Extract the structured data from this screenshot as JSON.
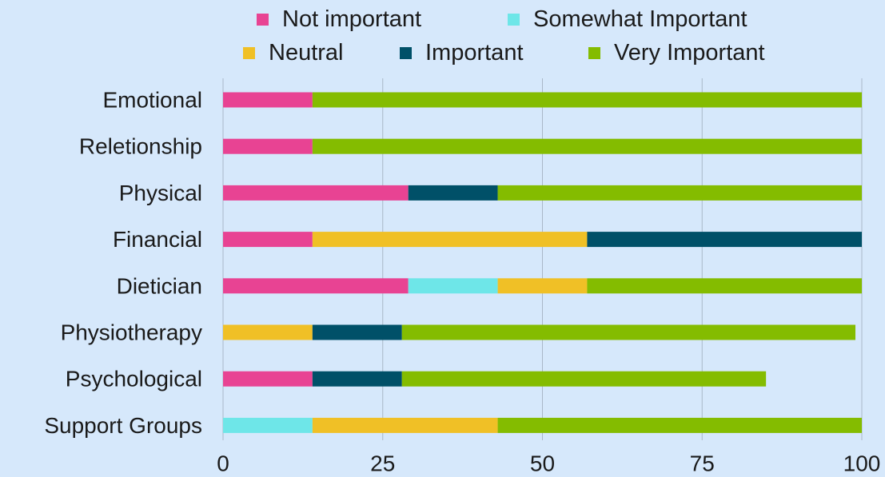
{
  "chart_data": {
    "type": "bar",
    "orientation": "horizontal",
    "stacked": true,
    "categories": [
      "Emotional",
      "Reletionship",
      "Physical",
      "Financial",
      "Dietician",
      "Physiotherapy",
      "Psychological",
      "Support Groups"
    ],
    "series": [
      {
        "name": "Not important",
        "color": "#e84393",
        "values": [
          14,
          14,
          29,
          14,
          29,
          0,
          14,
          0
        ]
      },
      {
        "name": "Somewhat Important",
        "color": "#6ee6e8",
        "values": [
          0,
          0,
          0,
          0,
          14,
          0,
          0,
          14
        ]
      },
      {
        "name": "Neutral",
        "color": "#f0c026",
        "values": [
          0,
          0,
          0,
          43,
          14,
          14,
          0,
          29
        ]
      },
      {
        "name": "Important",
        "color": "#005068",
        "values": [
          0,
          0,
          14,
          43,
          0,
          14,
          14,
          0
        ]
      },
      {
        "name": "Very Important",
        "color": "#84bc00",
        "values": [
          86,
          86,
          57,
          0,
          43,
          71,
          57,
          57
        ]
      }
    ],
    "xlim": [
      0,
      100
    ],
    "xticks": [
      "0",
      "25",
      "50",
      "75",
      "100"
    ],
    "grid": "vertical",
    "legend_position": "top",
    "title": "",
    "xlabel": "",
    "ylabel": ""
  }
}
